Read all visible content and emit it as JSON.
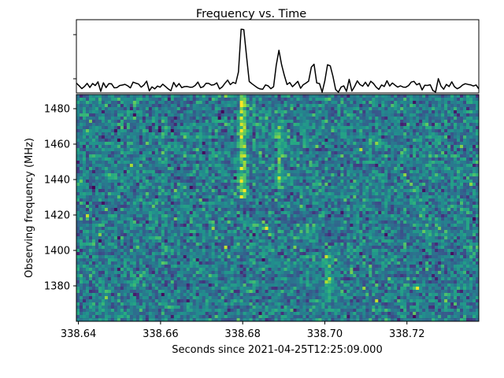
{
  "chart_data": [
    {
      "type": "line",
      "panel": "top",
      "title": "Frequency vs. Time",
      "xlim": [
        338.6395,
        338.7375
      ],
      "color": "#000000",
      "y_ticks_labelled": false,
      "y_tick_count": 2,
      "peaks": [
        {
          "x": 338.68,
          "y": 1.0
        },
        {
          "x": 338.689,
          "y": 0.56
        },
        {
          "x": 338.697,
          "y": 0.33
        },
        {
          "x": 338.701,
          "y": 0.38
        }
      ],
      "baseline_level": 0.0
    },
    {
      "type": "heatmap",
      "panel": "bottom",
      "xlabel": "Seconds since 2021-04-25T12:25:09.000",
      "ylabel": "Observing frequency (MHz)",
      "xlim": [
        338.6395,
        338.7375
      ],
      "ylim": [
        1360,
        1488
      ],
      "x_ticks": [
        338.64,
        338.66,
        338.68,
        338.7,
        338.72
      ],
      "x_tick_labels": [
        "338.64",
        "338.66",
        "338.68",
        "338.70",
        "338.72"
      ],
      "y_ticks": [
        1380,
        1400,
        1420,
        1440,
        1460,
        1480
      ],
      "y_tick_labels": [
        "1380",
        "1400",
        "1420",
        "1440",
        "1460",
        "1480"
      ],
      "colormap": "viridis",
      "bursts": [
        {
          "x": 338.68,
          "y_range": [
            1430,
            1488
          ],
          "strength": 1.0
        },
        {
          "x": 338.689,
          "y_range": [
            1430,
            1470
          ],
          "strength": 0.5
        },
        {
          "x": 338.701,
          "y_range": [
            1370,
            1400
          ],
          "strength": 0.45
        }
      ]
    }
  ]
}
